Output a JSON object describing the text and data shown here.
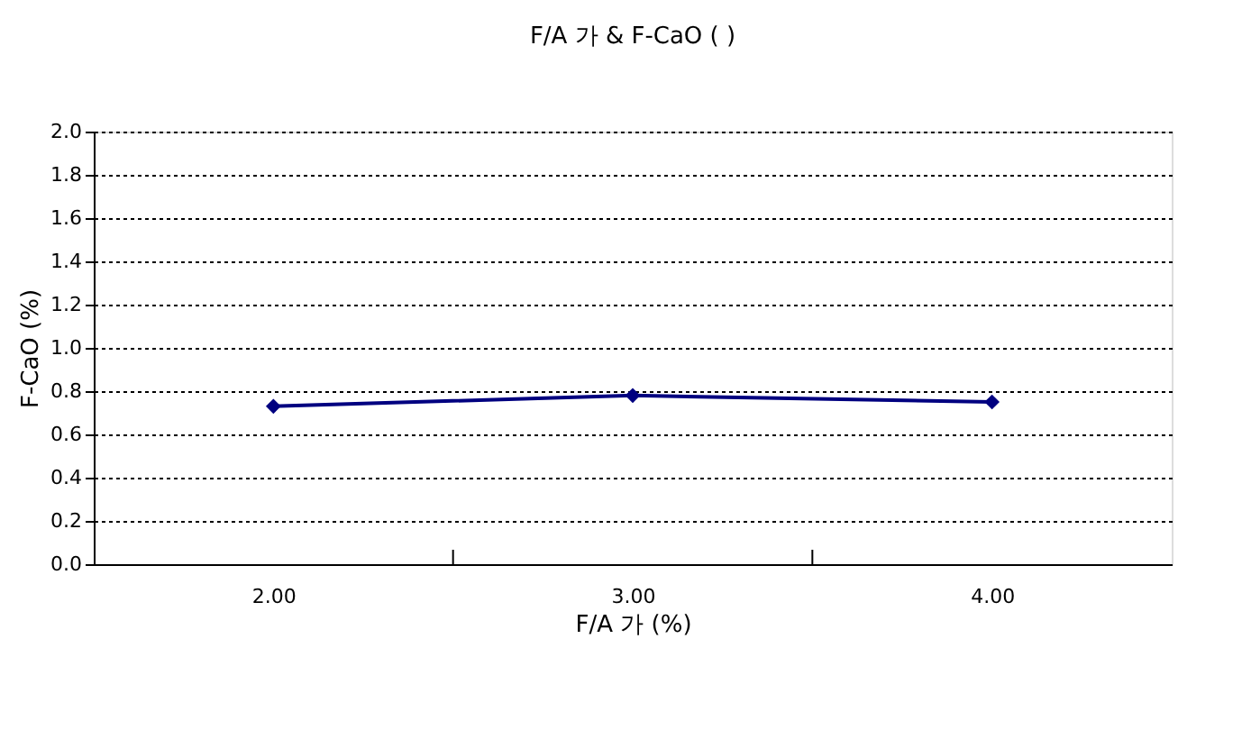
{
  "chart_data": {
    "type": "line",
    "title": "F/A 가 & F-CaO ( )",
    "xlabel": "F/A 가 (%)",
    "ylabel": "F-CaO (%)",
    "categories": [
      "2.00",
      "3.00",
      "4.00"
    ],
    "series": [
      {
        "color": "#000080",
        "values": [
          0.73,
          0.78,
          0.75
        ]
      }
    ],
    "ylim": [
      0,
      2
    ],
    "yticks": [
      {
        "value": 0,
        "label": "0.0"
      },
      {
        "value": 0.2,
        "label": "0.2"
      },
      {
        "value": 0.4,
        "label": "0.4"
      },
      {
        "value": 0.6,
        "label": "0.6"
      },
      {
        "value": 0.8,
        "label": "0.8"
      },
      {
        "value": 1,
        "label": "1.0"
      },
      {
        "value": 1.2,
        "label": "1.2"
      },
      {
        "value": 1.4,
        "label": "1.4"
      },
      {
        "value": 1.6,
        "label": "1.6"
      },
      {
        "value": 1.8,
        "label": "1.8"
      },
      {
        "value": 2,
        "label": "2.0"
      }
    ],
    "grid": "y",
    "marker": "diamond",
    "line_style": "solid",
    "legend": false
  }
}
